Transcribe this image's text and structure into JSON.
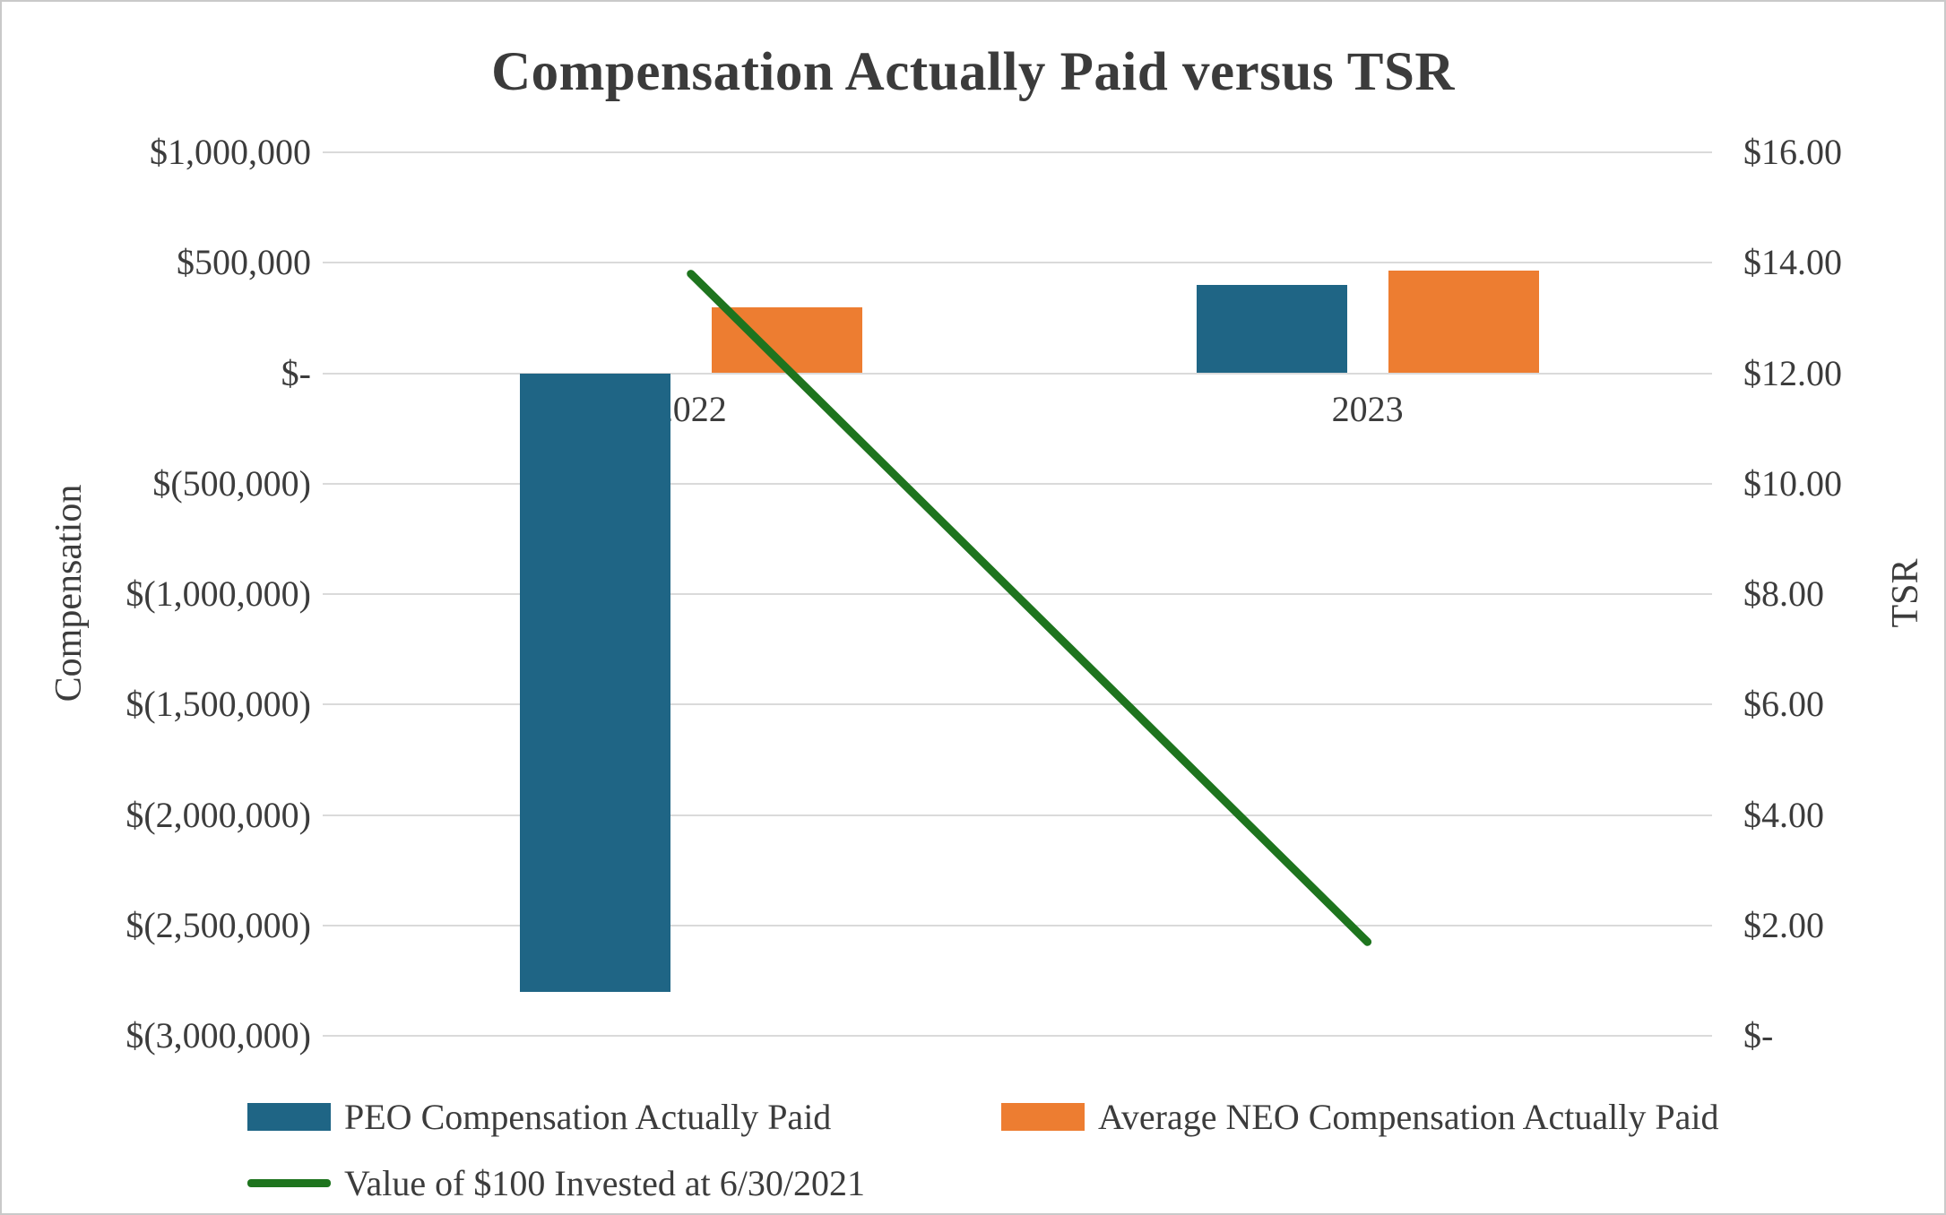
{
  "chart_data": {
    "type": "bar",
    "combo": "clustered bars on primary axis + line on secondary axis",
    "title": "Compensation Actually Paid versus TSR",
    "categories": [
      "2022",
      "2023"
    ],
    "series": [
      {
        "name": "PEO Compensation Actually Paid",
        "type": "bar",
        "axis": "left",
        "color": "#1F6585",
        "values": [
          -2800000,
          400000
        ]
      },
      {
        "name": "Average NEO Compensation Actually Paid",
        "type": "bar",
        "axis": "left",
        "color": "#ED7D31",
        "values": [
          300000,
          465000
        ]
      },
      {
        "name": "Value of $100 Invested at 6/30/2021",
        "type": "line",
        "axis": "right",
        "color": "#1E741E",
        "values": [
          13.8,
          1.7
        ]
      }
    ],
    "left_axis": {
      "label": "Compensation",
      "min": -3000000,
      "max": 1000000,
      "step": 500000,
      "tick_labels": [
        "$1,000,000",
        "$500,000",
        "$-",
        "$(500,000)",
        "$(1,000,000)",
        "$(1,500,000)",
        "$(2,000,000)",
        "$(2,500,000)",
        "$(3,000,000)"
      ]
    },
    "right_axis": {
      "label": "TSR",
      "min": 0,
      "max": 16,
      "step": 2,
      "tick_labels": [
        "$16.00",
        "$14.00",
        "$12.00",
        "$10.00",
        "$8.00",
        "$6.00",
        "$4.00",
        "$2.00",
        "$-"
      ]
    },
    "grid": true,
    "gridline_color": "#DADADA",
    "text_color": "#3C3C3C",
    "legend_position": "bottom-left"
  }
}
